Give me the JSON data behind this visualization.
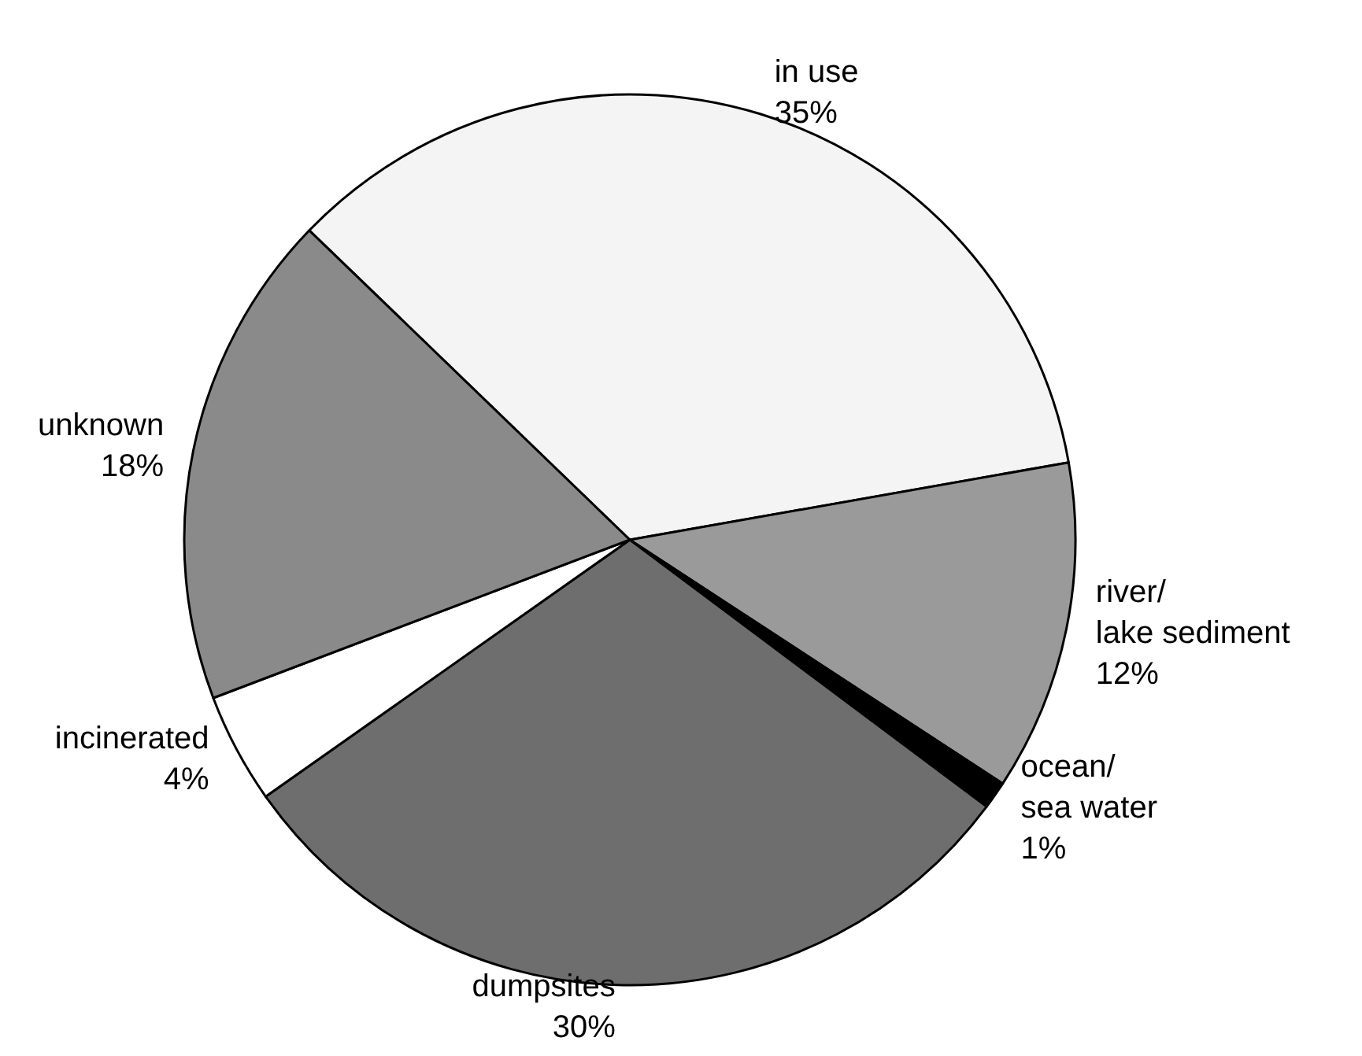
{
  "chart_data": {
    "type": "pie",
    "categories": [
      "in use",
      "river/\nlake sediment",
      "ocean/\nsea water",
      "dumpsites",
      "incinerated",
      "unknown"
    ],
    "values": [
      35,
      12,
      1,
      30,
      4,
      18
    ],
    "value_labels": [
      "35%",
      "12%",
      "1%",
      "30%",
      "4%",
      "18%"
    ],
    "colors": [
      "#f4f4f4",
      "#9a9a9a",
      "#000000",
      "#6e6e6e",
      "#ffffff",
      "#8a8a8a"
    ]
  }
}
